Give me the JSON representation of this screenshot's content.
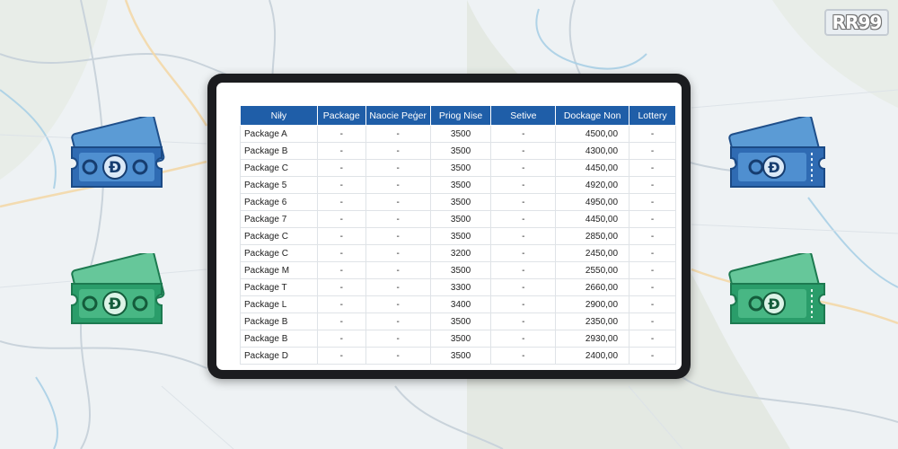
{
  "brand": {
    "logo_text": "RR99"
  },
  "colors": {
    "header_bg": "#1f5ea8",
    "ticket_blue": "#2f6bb3",
    "ticket_green": "#2a9d6a"
  },
  "icons": {
    "ticket_left_top": "blue-dong-ticket-icon",
    "ticket_left_bottom": "green-dong-ticket-icon",
    "ticket_right_top": "blue-dong-ticket-icon",
    "ticket_right_bottom": "green-dong-ticket-icon",
    "ticket_symbol": "Đ"
  },
  "table": {
    "headers": [
      "Niły",
      "Package",
      "Naocie Peġer",
      "Priog Nise",
      "Setive",
      "Dockage Non",
      "Lottery"
    ],
    "rows": [
      [
        "Package A",
        "-",
        "-",
        "3500",
        "-",
        "4500,00",
        "-"
      ],
      [
        "Package B",
        "-",
        "-",
        "3500",
        "-",
        "4300,00",
        "-"
      ],
      [
        "Package C",
        "-",
        "-",
        "3500",
        "-",
        "4450,00",
        "-"
      ],
      [
        "Package 5",
        "-",
        "-",
        "3500",
        "-",
        "4920,00",
        "-"
      ],
      [
        "Package 6",
        "-",
        "-",
        "3500",
        "-",
        "4950,00",
        "-"
      ],
      [
        "Package 7",
        "-",
        "-",
        "3500",
        "-",
        "4450,00",
        "-"
      ],
      [
        "Package C",
        "-",
        "-",
        "3500",
        "-",
        "2850,00",
        "-"
      ],
      [
        "Package C",
        "-",
        "-",
        "3200",
        "-",
        "2450,00",
        "-"
      ],
      [
        "Package M",
        "-",
        "-",
        "3500",
        "-",
        "2550,00",
        "-"
      ],
      [
        "Package T",
        "-",
        "-",
        "3300",
        "-",
        "2660,00",
        "-"
      ],
      [
        "Package L",
        "-",
        "-",
        "3400",
        "-",
        "2900,00",
        "-"
      ],
      [
        "Package B",
        "-",
        "-",
        "3500",
        "-",
        "2350,00",
        "-"
      ],
      [
        "Package B",
        "-",
        "-",
        "3500",
        "-",
        "2930,00",
        "-"
      ],
      [
        "Package D",
        "-",
        "-",
        "3500",
        "-",
        "2400,00",
        "-"
      ]
    ]
  }
}
